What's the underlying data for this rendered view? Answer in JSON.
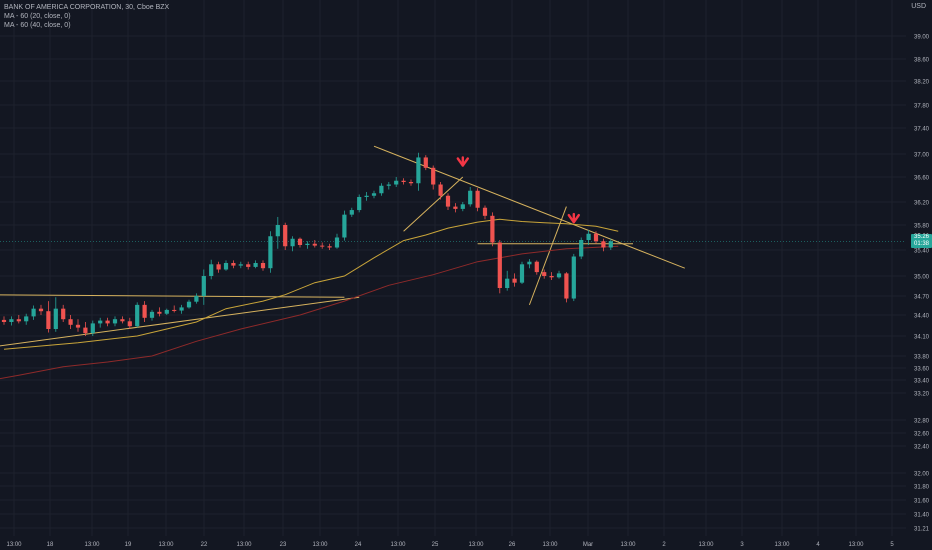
{
  "symbol_legend": {
    "title": "BANK OF AMERICA CORPORATION, 30, Cboe BZX",
    "ma1": "MA - 60 (20, close, 0)",
    "ma2": "MA - 60 (40, close, 0)"
  },
  "currency": "USD",
  "price_badge": {
    "price": "35.26",
    "countdown": "01:38"
  },
  "colors": {
    "background": "#131722",
    "grid": "#1e222d",
    "axis_text": "#b2b5be",
    "up": "#26a69a",
    "down": "#ef5350",
    "ma_fast": "#c9a53a",
    "ma_slow": "#8e2a2a",
    "trendline": "#d6b25e",
    "arrow": "#f23645"
  },
  "chart_data": {
    "type": "candlestick",
    "interval": "30",
    "ylim": [
      31.21,
      39.25
    ],
    "y_ticks": [
      "39.00",
      "38.60",
      "38.20",
      "37.80",
      "37.40",
      "37.00",
      "36.60",
      "36.20",
      "35.80",
      "35.40",
      "35.00",
      "34.70",
      "34.40",
      "34.10",
      "33.80",
      "33.60",
      "33.40",
      "33.20",
      "32.80",
      "32.60",
      "32.40",
      "32.00",
      "31.80",
      "31.60",
      "31.40",
      "31.21"
    ],
    "x_ticks": [
      "13:00",
      "18",
      "13:00",
      "19",
      "13:00",
      "22",
      "13:00",
      "23",
      "13:00",
      "24",
      "13:00",
      "25",
      "13:00",
      "26",
      "13:00",
      "Mar",
      "13:00",
      "2",
      "13:00",
      "3",
      "13:00",
      "4",
      "13:00",
      "5"
    ],
    "candles": [
      {
        "o": 34.33,
        "h": 34.38,
        "l": 34.26,
        "c": 34.3
      },
      {
        "o": 34.3,
        "h": 34.38,
        "l": 34.25,
        "c": 34.34
      },
      {
        "o": 34.34,
        "h": 34.4,
        "l": 34.28,
        "c": 34.31
      },
      {
        "o": 34.31,
        "h": 34.42,
        "l": 34.26,
        "c": 34.38
      },
      {
        "o": 34.38,
        "h": 34.55,
        "l": 34.33,
        "c": 34.5
      },
      {
        "o": 34.5,
        "h": 34.56,
        "l": 34.4,
        "c": 34.46
      },
      {
        "o": 34.46,
        "h": 34.62,
        "l": 34.15,
        "c": 34.2
      },
      {
        "o": 34.2,
        "h": 34.68,
        "l": 34.16,
        "c": 34.5
      },
      {
        "o": 34.5,
        "h": 34.56,
        "l": 34.3,
        "c": 34.34
      },
      {
        "o": 34.34,
        "h": 34.4,
        "l": 34.2,
        "c": 34.26
      },
      {
        "o": 34.26,
        "h": 34.34,
        "l": 34.16,
        "c": 34.22
      },
      {
        "o": 34.22,
        "h": 34.3,
        "l": 34.1,
        "c": 34.14
      },
      {
        "o": 34.14,
        "h": 34.32,
        "l": 34.1,
        "c": 34.28
      },
      {
        "o": 34.28,
        "h": 34.36,
        "l": 34.22,
        "c": 34.32
      },
      {
        "o": 34.32,
        "h": 34.36,
        "l": 34.24,
        "c": 34.28
      },
      {
        "o": 34.28,
        "h": 34.38,
        "l": 34.24,
        "c": 34.34
      },
      {
        "o": 34.34,
        "h": 34.38,
        "l": 34.28,
        "c": 34.31
      },
      {
        "o": 34.31,
        "h": 34.36,
        "l": 34.2,
        "c": 34.24
      },
      {
        "o": 34.24,
        "h": 34.6,
        "l": 34.22,
        "c": 34.56
      },
      {
        "o": 34.56,
        "h": 34.62,
        "l": 34.3,
        "c": 34.36
      },
      {
        "o": 34.36,
        "h": 34.48,
        "l": 34.32,
        "c": 34.45
      },
      {
        "o": 34.45,
        "h": 34.52,
        "l": 34.38,
        "c": 34.42
      },
      {
        "o": 34.42,
        "h": 34.5,
        "l": 34.4,
        "c": 34.48
      },
      {
        "o": 34.48,
        "h": 34.55,
        "l": 34.44,
        "c": 34.47
      },
      {
        "o": 34.47,
        "h": 34.56,
        "l": 34.42,
        "c": 34.52
      },
      {
        "o": 34.52,
        "h": 34.64,
        "l": 34.5,
        "c": 34.61
      },
      {
        "o": 34.61,
        "h": 34.74,
        "l": 34.58,
        "c": 34.7
      },
      {
        "o": 34.7,
        "h": 35.1,
        "l": 34.56,
        "c": 35.0
      },
      {
        "o": 35.0,
        "h": 35.25,
        "l": 34.95,
        "c": 35.18
      },
      {
        "o": 35.18,
        "h": 35.22,
        "l": 35.05,
        "c": 35.1
      },
      {
        "o": 35.1,
        "h": 35.24,
        "l": 35.08,
        "c": 35.2
      },
      {
        "o": 35.2,
        "h": 35.24,
        "l": 35.12,
        "c": 35.16
      },
      {
        "o": 35.16,
        "h": 35.22,
        "l": 35.12,
        "c": 35.18
      },
      {
        "o": 35.18,
        "h": 35.22,
        "l": 35.1,
        "c": 35.14
      },
      {
        "o": 35.14,
        "h": 35.24,
        "l": 35.12,
        "c": 35.2
      },
      {
        "o": 35.2,
        "h": 35.24,
        "l": 35.08,
        "c": 35.12
      },
      {
        "o": 35.12,
        "h": 35.7,
        "l": 35.05,
        "c": 35.62
      },
      {
        "o": 35.62,
        "h": 35.94,
        "l": 35.42,
        "c": 35.8
      },
      {
        "o": 35.8,
        "h": 35.84,
        "l": 35.4,
        "c": 35.46
      },
      {
        "o": 35.46,
        "h": 35.62,
        "l": 35.38,
        "c": 35.58
      },
      {
        "o": 35.58,
        "h": 35.6,
        "l": 35.44,
        "c": 35.48
      },
      {
        "o": 35.48,
        "h": 35.54,
        "l": 35.42,
        "c": 35.5
      },
      {
        "o": 35.5,
        "h": 35.56,
        "l": 35.44,
        "c": 35.47
      },
      {
        "o": 35.47,
        "h": 35.52,
        "l": 35.42,
        "c": 35.46
      },
      {
        "o": 35.46,
        "h": 35.5,
        "l": 35.4,
        "c": 35.44
      },
      {
        "o": 35.44,
        "h": 35.66,
        "l": 35.42,
        "c": 35.6
      },
      {
        "o": 35.6,
        "h": 36.05,
        "l": 35.55,
        "c": 35.98
      },
      {
        "o": 35.98,
        "h": 36.1,
        "l": 35.94,
        "c": 36.06
      },
      {
        "o": 36.06,
        "h": 36.32,
        "l": 36.02,
        "c": 36.28
      },
      {
        "o": 36.28,
        "h": 36.36,
        "l": 36.22,
        "c": 36.3
      },
      {
        "o": 36.3,
        "h": 36.38,
        "l": 36.26,
        "c": 36.34
      },
      {
        "o": 36.34,
        "h": 36.5,
        "l": 36.3,
        "c": 36.46
      },
      {
        "o": 36.46,
        "h": 36.52,
        "l": 36.4,
        "c": 36.48
      },
      {
        "o": 36.48,
        "h": 36.6,
        "l": 36.44,
        "c": 36.54
      },
      {
        "o": 36.54,
        "h": 36.58,
        "l": 36.48,
        "c": 36.52
      },
      {
        "o": 36.52,
        "h": 36.56,
        "l": 36.46,
        "c": 36.5
      },
      {
        "o": 36.5,
        "h": 37.02,
        "l": 36.38,
        "c": 36.94
      },
      {
        "o": 36.94,
        "h": 36.98,
        "l": 36.72,
        "c": 36.76
      },
      {
        "o": 36.76,
        "h": 36.8,
        "l": 36.4,
        "c": 36.48
      },
      {
        "o": 36.48,
        "h": 36.52,
        "l": 36.24,
        "c": 36.3
      },
      {
        "o": 36.3,
        "h": 36.34,
        "l": 36.06,
        "c": 36.12
      },
      {
        "o": 36.12,
        "h": 36.18,
        "l": 36.02,
        "c": 36.08
      },
      {
        "o": 36.08,
        "h": 36.2,
        "l": 36.04,
        "c": 36.16
      },
      {
        "o": 36.16,
        "h": 36.44,
        "l": 36.12,
        "c": 36.38
      },
      {
        "o": 36.38,
        "h": 36.42,
        "l": 36.04,
        "c": 36.1
      },
      {
        "o": 36.1,
        "h": 36.14,
        "l": 35.9,
        "c": 35.96
      },
      {
        "o": 35.96,
        "h": 36.02,
        "l": 35.46,
        "c": 35.52
      },
      {
        "o": 35.52,
        "h": 35.56,
        "l": 34.74,
        "c": 34.82
      },
      {
        "o": 34.82,
        "h": 35.08,
        "l": 34.78,
        "c": 34.96
      },
      {
        "o": 34.96,
        "h": 35.04,
        "l": 34.84,
        "c": 34.9
      },
      {
        "o": 34.9,
        "h": 35.22,
        "l": 34.88,
        "c": 35.18
      },
      {
        "o": 35.18,
        "h": 35.26,
        "l": 35.12,
        "c": 35.22
      },
      {
        "o": 35.22,
        "h": 35.24,
        "l": 35.02,
        "c": 35.06
      },
      {
        "o": 35.06,
        "h": 35.1,
        "l": 34.96,
        "c": 35.0
      },
      {
        "o": 35.0,
        "h": 35.06,
        "l": 34.94,
        "c": 34.98
      },
      {
        "o": 34.98,
        "h": 35.08,
        "l": 34.96,
        "c": 35.04
      },
      {
        "o": 35.04,
        "h": 35.06,
        "l": 34.6,
        "c": 34.66
      },
      {
        "o": 34.66,
        "h": 35.34,
        "l": 34.62,
        "c": 35.3
      },
      {
        "o": 35.3,
        "h": 35.6,
        "l": 35.26,
        "c": 35.56
      },
      {
        "o": 35.56,
        "h": 35.72,
        "l": 35.48,
        "c": 35.66
      },
      {
        "o": 35.66,
        "h": 35.7,
        "l": 35.5,
        "c": 35.54
      },
      {
        "o": 35.54,
        "h": 35.58,
        "l": 35.38,
        "c": 35.44
      },
      {
        "o": 35.44,
        "h": 35.58,
        "l": 35.4,
        "c": 35.54
      }
    ],
    "ma_fast": [
      [
        0,
        33.9
      ],
      [
        10,
        34.0
      ],
      [
        18,
        34.1
      ],
      [
        26,
        34.3
      ],
      [
        30,
        34.5
      ],
      [
        35,
        34.62
      ],
      [
        38,
        34.72
      ],
      [
        42,
        34.9
      ],
      [
        46,
        35.0
      ],
      [
        50,
        35.28
      ],
      [
        54,
        35.55
      ],
      [
        57,
        35.64
      ],
      [
        60,
        35.75
      ],
      [
        64,
        35.85
      ],
      [
        67,
        35.9
      ],
      [
        70,
        35.86
      ],
      [
        73,
        35.84
      ],
      [
        76,
        35.82
      ],
      [
        80,
        35.78
      ],
      [
        83,
        35.7
      ]
    ],
    "ma_slow": [
      [
        -4,
        33.35
      ],
      [
        2,
        33.48
      ],
      [
        8,
        33.62
      ],
      [
        14,
        33.7
      ],
      [
        20,
        33.8
      ],
      [
        26,
        34.02
      ],
      [
        32,
        34.2
      ],
      [
        40,
        34.4
      ],
      [
        46,
        34.62
      ],
      [
        52,
        34.86
      ],
      [
        58,
        35.02
      ],
      [
        64,
        35.22
      ],
      [
        70,
        35.34
      ],
      [
        76,
        35.42
      ],
      [
        83,
        35.46
      ]
    ],
    "trendlines": [
      {
        "x1": -4,
        "y1": 34.72,
        "x2": 46,
        "y2": 34.68
      },
      {
        "x1": -4,
        "y1": 33.9,
        "x2": 48,
        "y2": 34.68
      },
      {
        "x1": 50,
        "y1": 37.12,
        "x2": 92,
        "y2": 35.12
      },
      {
        "x1": 54,
        "y1": 35.7,
        "x2": 62,
        "y2": 36.6
      },
      {
        "x1": 64,
        "y1": 35.5,
        "x2": 85,
        "y2": 35.5
      },
      {
        "x1": 71,
        "y1": 34.56,
        "x2": 76,
        "y2": 36.12
      }
    ],
    "arrows": [
      {
        "x": 62,
        "y": 36.8
      },
      {
        "x": 77,
        "y": 35.85
      }
    ]
  }
}
